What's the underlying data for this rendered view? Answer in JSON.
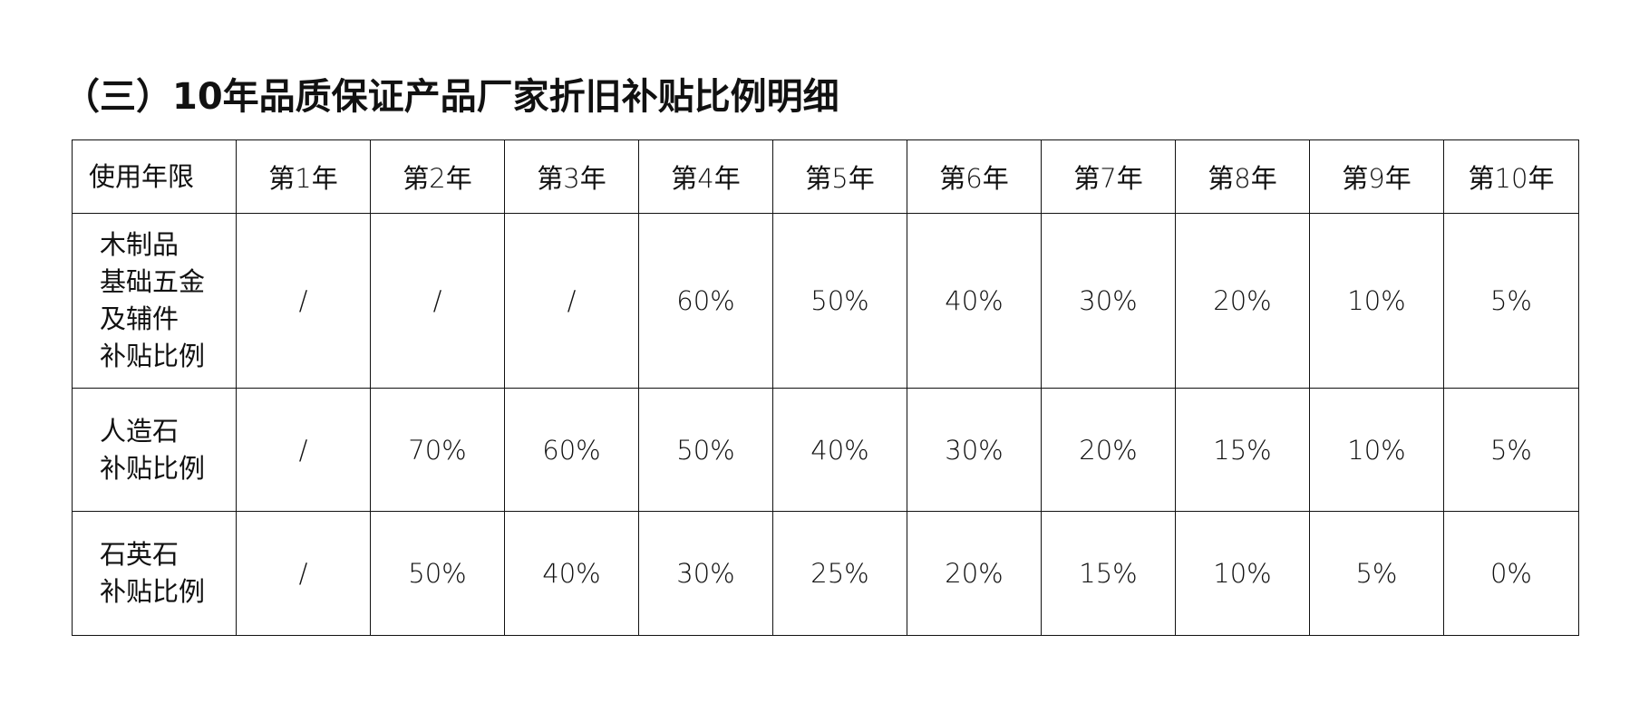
{
  "title": "（三）10年品质保证产品厂家折旧补贴比例明细",
  "table": {
    "header_label": "使用年限",
    "years": [
      "第1年",
      "第2年",
      "第3年",
      "第4年",
      "第5年",
      "第6年",
      "第7年",
      "第8年",
      "第9年",
      "第10年"
    ],
    "rows": [
      {
        "label_lines": [
          "木制品",
          "基础五金",
          "及辅件",
          "补贴比例"
        ],
        "values": [
          "/",
          "/",
          "/",
          "60%",
          "50%",
          "40%",
          "30%",
          "20%",
          "10%",
          "5%"
        ]
      },
      {
        "label_lines": [
          "人造石",
          "补贴比例"
        ],
        "values": [
          "/",
          "70%",
          "60%",
          "50%",
          "40%",
          "30%",
          "20%",
          "15%",
          "10%",
          "5%"
        ]
      },
      {
        "label_lines": [
          "石英石",
          "补贴比例"
        ],
        "values": [
          "/",
          "50%",
          "40%",
          "30%",
          "25%",
          "20%",
          "15%",
          "10%",
          "5%",
          "0%"
        ]
      }
    ]
  }
}
